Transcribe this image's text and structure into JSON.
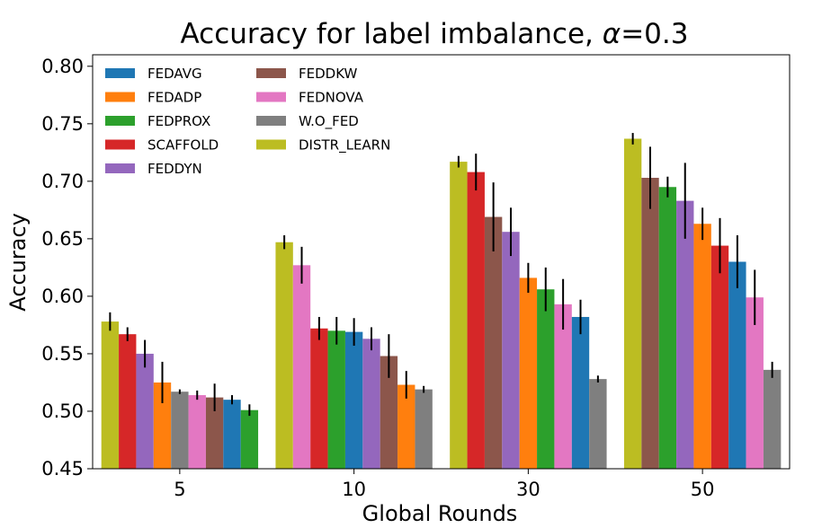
{
  "chart_data": {
    "type": "bar",
    "title": "Accuracy for label imbalance, α=0.3",
    "title_prefix": "Accuracy for label imbalance, ",
    "title_symbol": "α",
    "title_suffix": "=0.3",
    "xlabel": "Global Rounds",
    "ylabel": "Accuracy",
    "ylim": [
      0.45,
      0.81
    ],
    "yticks": [
      0.45,
      0.5,
      0.55,
      0.6,
      0.65,
      0.7,
      0.75,
      0.8
    ],
    "ytick_labels": [
      "0.45",
      "0.50",
      "0.55",
      "0.60",
      "0.65",
      "0.70",
      "0.75",
      "0.80"
    ],
    "categories": [
      "5",
      "10",
      "30",
      "50"
    ],
    "legend_position": "top-left",
    "series": [
      {
        "name": "FEDAVG",
        "color": "#1f77b4",
        "values": [
          0.51,
          0.569,
          0.582,
          0.63
        ],
        "errors": [
          0.004,
          0.012,
          0.015,
          0.023
        ]
      },
      {
        "name": "FEDADP",
        "color": "#ff7f0e",
        "values": [
          0.525,
          0.523,
          0.616,
          0.663
        ],
        "errors": [
          0.018,
          0.012,
          0.013,
          0.014
        ]
      },
      {
        "name": "FEDPROX",
        "color": "#2ca02c",
        "values": [
          0.501,
          0.57,
          0.606,
          0.695
        ],
        "errors": [
          0.005,
          0.012,
          0.019,
          0.009
        ]
      },
      {
        "name": "SCAFFOLD",
        "color": "#d62728",
        "values": [
          0.567,
          0.572,
          0.708,
          0.644
        ],
        "errors": [
          0.006,
          0.01,
          0.016,
          0.024
        ]
      },
      {
        "name": "FEDDYN",
        "color": "#9467bd",
        "values": [
          0.55,
          0.563,
          0.656,
          0.683
        ],
        "errors": [
          0.012,
          0.01,
          0.021,
          0.033
        ]
      },
      {
        "name": "FEDDKW",
        "color": "#8c564b",
        "values": [
          0.512,
          0.548,
          0.669,
          0.703
        ],
        "errors": [
          0.012,
          0.019,
          0.03,
          0.027
        ]
      },
      {
        "name": "FEDNOVA",
        "color": "#e377c2",
        "values": [
          0.514,
          0.627,
          0.593,
          0.599
        ],
        "errors": [
          0.004,
          0.016,
          0.022,
          0.024
        ]
      },
      {
        "name": "W.O_FED",
        "color": "#7f7f7f",
        "values": [
          0.517,
          0.519,
          0.528,
          0.536
        ],
        "errors": [
          0.002,
          0.003,
          0.003,
          0.007
        ]
      },
      {
        "name": "DISTR_LEARN",
        "color": "#bcbd22",
        "values": [
          0.578,
          0.647,
          0.717,
          0.737
        ],
        "errors": [
          0.008,
          0.006,
          0.005,
          0.005
        ]
      }
    ],
    "bar_order": [
      [
        8,
        3,
        4,
        1,
        7,
        6,
        5,
        0,
        2
      ],
      [
        8,
        6,
        3,
        2,
        0,
        4,
        5,
        1,
        7
      ],
      [
        8,
        3,
        5,
        4,
        1,
        2,
        6,
        0,
        7
      ],
      [
        8,
        5,
        2,
        4,
        1,
        3,
        0,
        6,
        7
      ]
    ]
  }
}
